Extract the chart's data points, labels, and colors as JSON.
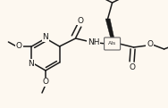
{
  "bg_color": "#fdf8f0",
  "bond_color": "#1a1a1a",
  "bond_width": 1.1,
  "font_size": 6.5,
  "fig_width": 1.88,
  "fig_height": 1.21,
  "dpi": 100,
  "xlim": [
    0,
    188
  ],
  "ylim": [
    0,
    121
  ]
}
